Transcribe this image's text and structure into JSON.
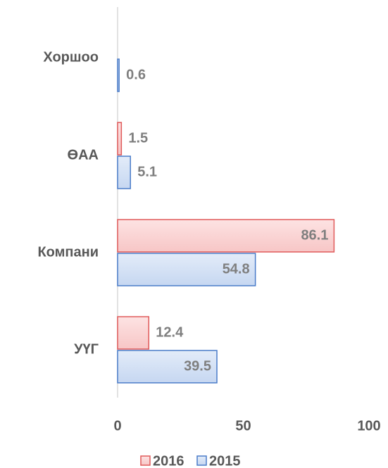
{
  "chart_data": {
    "type": "bar",
    "orientation": "horizontal",
    "categories": [
      "Хоршоо",
      "ӨАА",
      "Компани",
      "УҮГ"
    ],
    "series": [
      {
        "name": "2016",
        "color": "#e05a5a",
        "values": [
          null,
          1.5,
          86.1,
          12.4
        ]
      },
      {
        "name": "2015",
        "color": "#4a7cc9",
        "values": [
          0.6,
          5.1,
          54.8,
          39.5
        ]
      }
    ],
    "xlim": [
      0,
      100
    ],
    "xticks": [
      0,
      50,
      100
    ],
    "grid": false,
    "legend": "bottom"
  }
}
